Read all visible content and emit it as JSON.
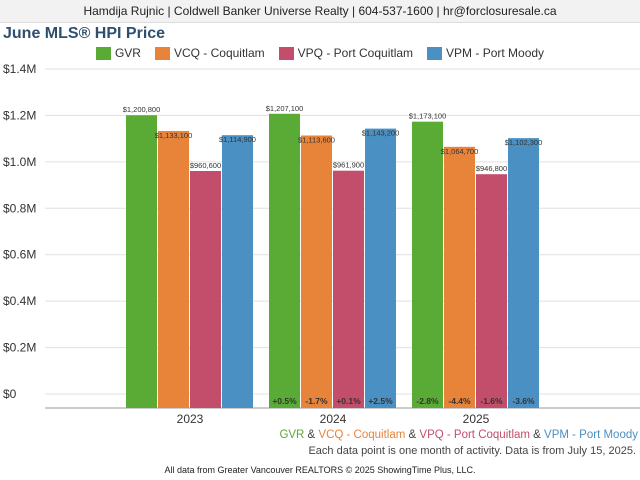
{
  "header": {
    "contact_line": "Hamdija Rujnic | Coldwell Banker Universe Realty | 604-537-1600 | hr@forclosuresale.ca"
  },
  "chart_data": {
    "type": "bar",
    "title": "June MLS® HPI Price",
    "categories": [
      "2023",
      "2024",
      "2025"
    ],
    "ylim": [
      0,
      1400000
    ],
    "yticks": [
      0,
      200000,
      400000,
      600000,
      800000,
      1000000,
      1200000,
      1400000
    ],
    "ytick_labels": [
      "$0",
      "$0.2M",
      "$0.4M",
      "$0.6M",
      "$0.8M",
      "$1.0M",
      "$1.2M",
      "$1.4M"
    ],
    "grid": true,
    "legend_position": "top",
    "series": [
      {
        "name": "GVR",
        "color": "#5aab36",
        "values": [
          1200800,
          1207100,
          1173100
        ],
        "value_labels": [
          "$1,200,800",
          "$1,207,100",
          "$1,173,100"
        ],
        "change_labels": [
          "",
          "+0.5%",
          "-2.8%"
        ]
      },
      {
        "name": "VCQ - Coquitlam",
        "color": "#e8833a",
        "values": [
          1133100,
          1113600,
          1064700
        ],
        "value_labels": [
          "$1,133,100",
          "$1,113,600",
          "$1,064,700"
        ],
        "change_labels": [
          "",
          "-1.7%",
          "-4.4%"
        ]
      },
      {
        "name": "VPQ - Port Coquitlam",
        "color": "#c24e6b",
        "values": [
          960600,
          961900,
          946800
        ],
        "value_labels": [
          "$960,600",
          "$961,900",
          "$946,800"
        ],
        "change_labels": [
          "",
          "+0.1%",
          "-1.6%"
        ]
      },
      {
        "name": "VPM - Port Moody",
        "color": "#4a90c2",
        "values": [
          1114900,
          1143200,
          1102300
        ],
        "value_labels": [
          "$1,114,900",
          "$1,143,200",
          "$1,102,300"
        ],
        "change_labels": [
          "",
          "+2.5%",
          "-3.6%"
        ]
      }
    ]
  },
  "footer": {
    "legend_parts": [
      {
        "text": "GVR",
        "color": "#5aab36"
      },
      {
        "text": " & ",
        "color": "#444444"
      },
      {
        "text": "VCQ - Coquitlam",
        "color": "#e8833a"
      },
      {
        "text": " & ",
        "color": "#444444"
      },
      {
        "text": "VPQ - Port Coquitlam",
        "color": "#c24e6b"
      },
      {
        "text": " & ",
        "color": "#444444"
      },
      {
        "text": "VPM - Port Moody",
        "color": "#4a90c2"
      }
    ],
    "note": "Each data point is one month of activity. Data is from July 15, 2025.",
    "source": "All data from Greater Vancouver REALTORS © 2025 ShowingTime Plus, LLC."
  }
}
